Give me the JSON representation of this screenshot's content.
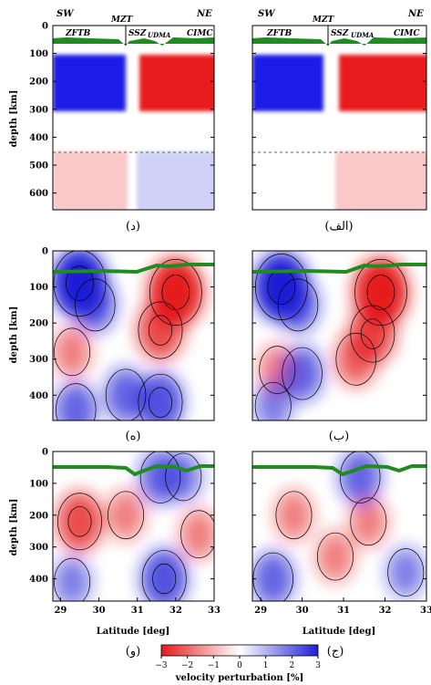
{
  "figure": {
    "top_labels": {
      "sw": "SW",
      "ne": "NE",
      "mzt": "MZT",
      "zftb": "ZFTB",
      "ssz": "SSZ",
      "udma": "UDMA",
      "cimc": "CIMC"
    },
    "panel_letters": {
      "r1_left": "(د)",
      "r1_right": "(الف)",
      "r2_left": "(ه)",
      "r2_right": "(ب)",
      "r3_left": "(و)",
      "r3_right": "(ج)"
    },
    "ylabel": "depth [km]",
    "xlabel": "Latitude [deg]",
    "colorbar": {
      "label": "velocity perturbation [%]",
      "ticks": [
        "−3",
        "−2",
        "−1",
        "0",
        "1",
        "2",
        "3"
      ],
      "colors": {
        "negative": "#e41a1c",
        "zero": "#ffffff",
        "positive": "#1f1fd6"
      }
    },
    "topo_color": "#1e8c1e"
  },
  "chart_data": [
    {
      "type": "heatmap",
      "panel": "(الف)",
      "ylabel": "depth [km]",
      "ylim": [
        0,
        660
      ],
      "y_ticks": [
        0,
        100,
        200,
        300,
        400,
        500,
        600
      ],
      "dashed_line_depth": 455,
      "blocks": [
        {
          "depth": [
            100,
            320
          ],
          "side": "SW",
          "dv": 3
        },
        {
          "depth": [
            100,
            320
          ],
          "side": "NE",
          "dv": -3
        },
        {
          "depth": [
            455,
            660
          ],
          "side": "NE",
          "dv": -1
        }
      ]
    },
    {
      "type": "heatmap",
      "panel": "(د)",
      "ylabel": "depth [km]",
      "ylim": [
        0,
        660
      ],
      "y_ticks": [
        0,
        100,
        200,
        300,
        400,
        500,
        600
      ],
      "dashed_line_depth": 455,
      "blocks": [
        {
          "depth": [
            100,
            320
          ],
          "side": "SW",
          "dv": 3
        },
        {
          "depth": [
            100,
            320
          ],
          "side": "NE",
          "dv": -3
        },
        {
          "depth": [
            455,
            660
          ],
          "side": "SW",
          "dv": -1
        },
        {
          "depth": [
            455,
            660
          ],
          "side": "NE",
          "dv": 1
        }
      ]
    },
    {
      "type": "heatmap",
      "panel": "(ب)",
      "ylabel": "depth [km]",
      "ylim": [
        0,
        470
      ],
      "y_ticks": [
        0,
        100,
        200,
        300,
        400
      ],
      "anomalies": [
        {
          "lat": 29.5,
          "depth": 100,
          "dv": 3
        },
        {
          "lat": 29.9,
          "depth": 150,
          "dv": 1.5
        },
        {
          "lat": 31.9,
          "depth": 115,
          "dv": -3
        },
        {
          "lat": 31.7,
          "depth": 230,
          "dv": -2
        },
        {
          "lat": 31.3,
          "depth": 300,
          "dv": -1.5
        },
        {
          "lat": 29.4,
          "depth": 330,
          "dv": -1
        },
        {
          "lat": 30.0,
          "depth": 340,
          "dv": 1.5
        },
        {
          "lat": 29.3,
          "depth": 430,
          "dv": 1
        }
      ]
    },
    {
      "type": "heatmap",
      "panel": "(ه)",
      "ylabel": "depth [km]",
      "ylim": [
        0,
        470
      ],
      "y_ticks": [
        0,
        100,
        200,
        300,
        400
      ],
      "anomalies": [
        {
          "lat": 29.5,
          "depth": 90,
          "dv": 3
        },
        {
          "lat": 29.9,
          "depth": 150,
          "dv": 1.5
        },
        {
          "lat": 32.0,
          "depth": 115,
          "dv": -3
        },
        {
          "lat": 31.6,
          "depth": 220,
          "dv": -2
        },
        {
          "lat": 29.3,
          "depth": 280,
          "dv": -1
        },
        {
          "lat": 30.7,
          "depth": 400,
          "dv": 1.5
        },
        {
          "lat": 31.6,
          "depth": 420,
          "dv": 2
        },
        {
          "lat": 29.4,
          "depth": 440,
          "dv": 1.5
        }
      ]
    },
    {
      "type": "heatmap",
      "panel": "(ج)",
      "xlabel": "Latitude [deg]",
      "ylabel": "depth [km]",
      "xlim": [
        28.8,
        33
      ],
      "x_ticks": [
        29,
        30,
        31,
        32,
        33
      ],
      "ylim": [
        0,
        470
      ],
      "y_ticks": [
        0,
        100,
        200,
        300,
        400
      ],
      "anomalies": [
        {
          "lat": 29.8,
          "depth": 200,
          "dv": -1
        },
        {
          "lat": 31.6,
          "depth": 220,
          "dv": -1
        },
        {
          "lat": 31.4,
          "depth": 80,
          "dv": 1.5
        },
        {
          "lat": 29.3,
          "depth": 400,
          "dv": 1.5
        },
        {
          "lat": 32.5,
          "depth": 380,
          "dv": 1
        },
        {
          "lat": 30.8,
          "depth": 330,
          "dv": -1
        }
      ]
    },
    {
      "type": "heatmap",
      "panel": "(و)",
      "xlabel": "Latitude [deg]",
      "ylabel": "depth [km]",
      "xlim": [
        28.8,
        33
      ],
      "x_ticks": [
        29,
        30,
        31,
        32,
        33
      ],
      "ylim": [
        0,
        470
      ],
      "y_ticks": [
        0,
        100,
        200,
        300,
        400
      ],
      "anomalies": [
        {
          "lat": 29.5,
          "depth": 220,
          "dv": -2
        },
        {
          "lat": 30.7,
          "depth": 200,
          "dv": -1
        },
        {
          "lat": 31.6,
          "depth": 80,
          "dv": 1.5
        },
        {
          "lat": 32.2,
          "depth": 80,
          "dv": 1
        },
        {
          "lat": 31.7,
          "depth": 400,
          "dv": 2
        },
        {
          "lat": 29.3,
          "depth": 410,
          "dv": 1
        },
        {
          "lat": 32.6,
          "depth": 260,
          "dv": -1
        }
      ]
    }
  ]
}
